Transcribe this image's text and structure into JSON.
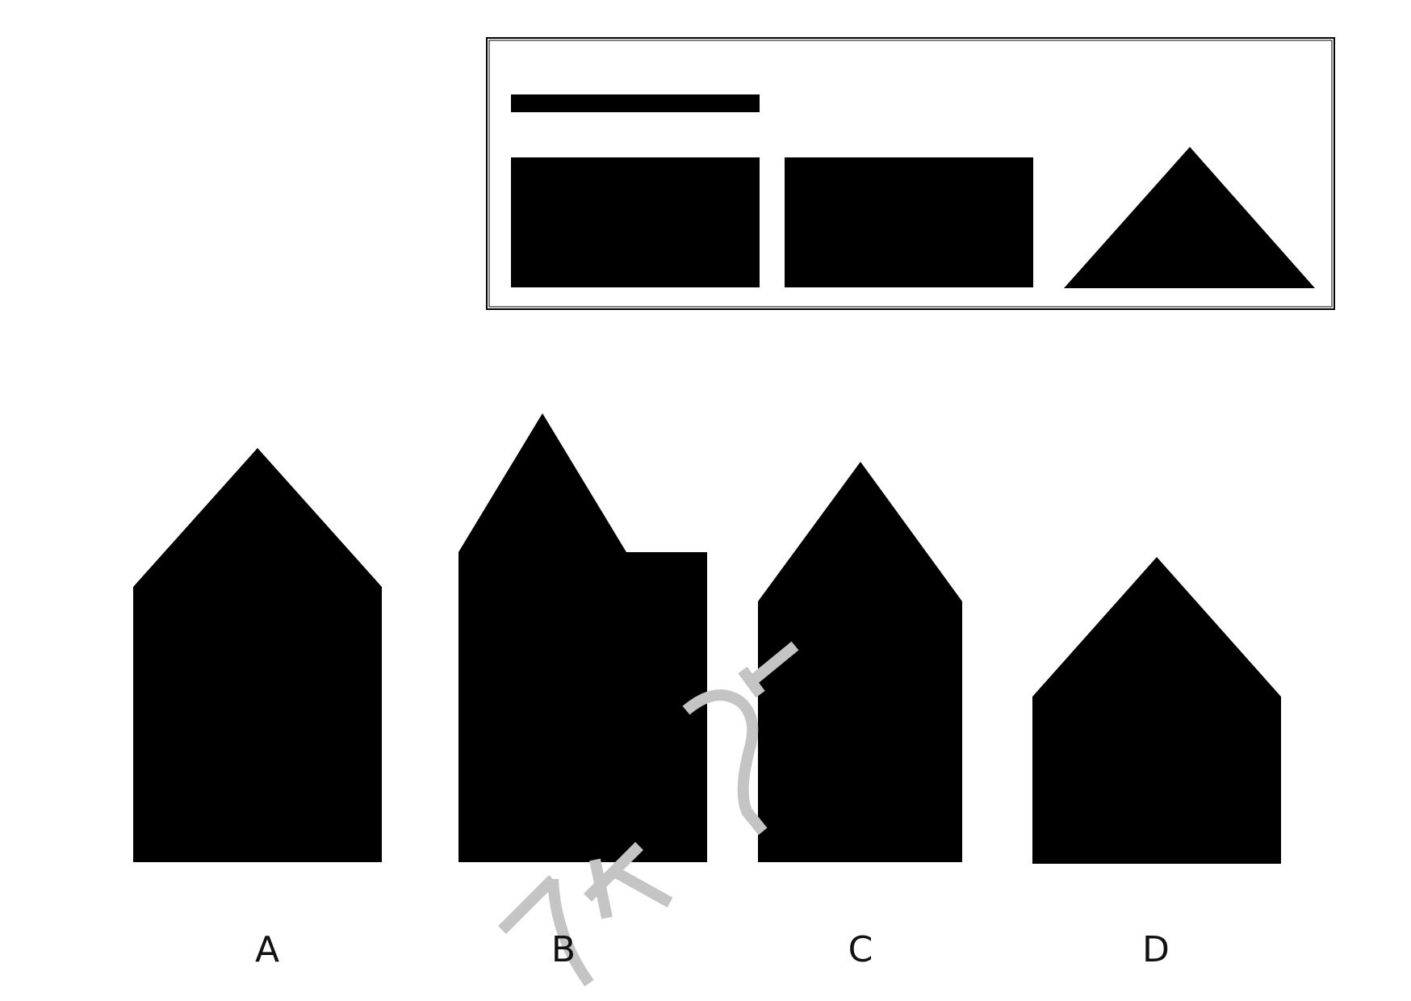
{
  "question": {
    "pieces": [
      {
        "shape": "thin-bar",
        "color": "#000000"
      },
      {
        "shape": "rectangle",
        "color": "#000000"
      },
      {
        "shape": "rectangle",
        "color": "#000000"
      },
      {
        "shape": "triangle",
        "color": "#000000"
      }
    ]
  },
  "options": [
    {
      "label": "A",
      "shape": "house-pentagon"
    },
    {
      "label": "B",
      "shape": "offset-roof-house"
    },
    {
      "label": "C",
      "shape": "tall-pentagon"
    },
    {
      "label": "D",
      "shape": "short-pentagon"
    }
  ],
  "colors": {
    "fill": "#000000",
    "frame": "#000000",
    "background": "#ffffff",
    "watermark": "#c4c4c4"
  }
}
